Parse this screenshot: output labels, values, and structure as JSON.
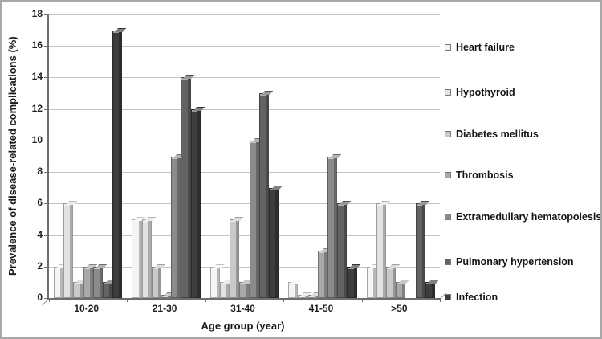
{
  "chart_data": {
    "type": "bar",
    "title": "",
    "xlabel": "Age group (year)",
    "ylabel": "Prevalence of disease-related complications (%)",
    "ylim": [
      0,
      18
    ],
    "ytick_step": 2,
    "y_tick_labels": [
      "0",
      "2",
      "4",
      "6",
      "8",
      "10",
      "12",
      "14",
      "16",
      "18"
    ],
    "grid": true,
    "legend_position": "right",
    "bar_style": "3d-beveled-grayscale",
    "categories": [
      "10-20",
      "21-30",
      "31-40",
      "41-50",
      ">50"
    ],
    "series": [
      {
        "name": "Heart failure",
        "color": "#f4f4f2",
        "values": [
          2,
          5,
          2,
          1,
          2
        ]
      },
      {
        "name": "Hypothyroid",
        "color": "#e2e2e0",
        "values": [
          6,
          5,
          1,
          0.2,
          6
        ]
      },
      {
        "name": "Diabetes mellitus",
        "color": "#c9c9c7",
        "values": [
          1,
          2,
          5,
          0.2,
          2
        ]
      },
      {
        "name": "Thrombosis",
        "color": "#a9a9a9",
        "values": [
          2,
          0.2,
          1,
          3,
          1
        ]
      },
      {
        "name": "Extramedullary hematopoiesis",
        "color": "#8b8b8b",
        "values": [
          2,
          9,
          10,
          9,
          0
        ]
      },
      {
        "name": "Pulmonary hypertension",
        "color": "#636363",
        "values": [
          1,
          14,
          13,
          6,
          6
        ]
      },
      {
        "name": "Infection",
        "color": "#3d3d3d",
        "values": [
          17,
          12,
          7,
          2,
          1
        ]
      }
    ]
  }
}
